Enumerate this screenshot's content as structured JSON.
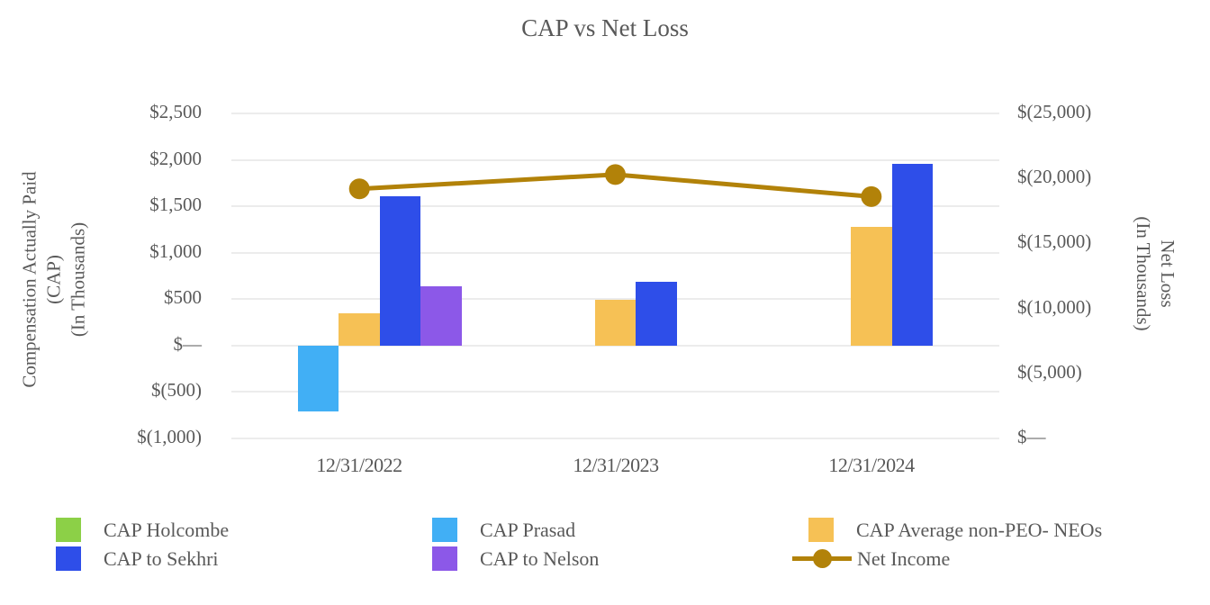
{
  "title": "CAP vs Net Loss",
  "chart_data": {
    "type": "bar",
    "title": "CAP vs Net Loss",
    "categories": [
      "12/31/2022",
      "12/31/2023",
      "12/31/2024"
    ],
    "series": [
      {
        "name": "CAP Holcombe",
        "type": "bar",
        "color": "#8cd047",
        "axis": "left",
        "values": [
          null,
          null,
          null
        ]
      },
      {
        "name": "CAP Prasad",
        "type": "bar",
        "color": "#41aff5",
        "axis": "left",
        "values": [
          -710,
          null,
          null
        ]
      },
      {
        "name": "CAP Average non-PEO- NEOs",
        "type": "bar",
        "color": "#f6c155",
        "axis": "left",
        "values": [
          350,
          490,
          1280
        ]
      },
      {
        "name": "CAP to Sekhri",
        "type": "bar",
        "color": "#2e4ee9",
        "axis": "left",
        "values": [
          1610,
          690,
          1960
        ]
      },
      {
        "name": "CAP to Nelson",
        "type": "bar",
        "color": "#8c58e8",
        "axis": "left",
        "values": [
          640,
          null,
          null
        ]
      },
      {
        "name": "Net Income",
        "type": "line",
        "color": "#b28209",
        "axis": "right",
        "values": [
          -19200,
          -20300,
          -18600
        ]
      }
    ],
    "left_axis": {
      "title_lines": [
        "Compensation Actually Paid",
        "(CAP)",
        "(In Thousands)"
      ],
      "tick_labels": [
        "$2,500",
        "$2,000",
        "$1,500",
        "$1,000",
        "$500",
        "$—",
        "$(500)",
        "$(1,000)"
      ],
      "tick_values": [
        2500,
        2000,
        1500,
        1000,
        500,
        0,
        -500,
        -1000
      ],
      "max": 2500,
      "min": -1000
    },
    "right_axis": {
      "title_lines": [
        "Net Loss",
        "(In Thousands)"
      ],
      "tick_labels": [
        "$(25,000)",
        "$(20,000)",
        "$(15,000)",
        "$(10,000)",
        "$(5,000)",
        "$—"
      ],
      "tick_values": [
        -25000,
        -20000,
        -15000,
        -10000,
        -5000,
        0
      ],
      "top": -25000,
      "bottom": 0
    },
    "grid": "horizontal",
    "legend_position": "bottom"
  },
  "legend": {
    "items": [
      {
        "label": "CAP Holcombe",
        "marker": "swatch",
        "color": "#8cd047"
      },
      {
        "label": "CAP Prasad",
        "marker": "swatch",
        "color": "#41aff5"
      },
      {
        "label": "CAP Average non-PEO- NEOs",
        "marker": "swatch",
        "color": "#f6c155"
      },
      {
        "label": "CAP to Sekhri",
        "marker": "swatch",
        "color": "#2e4ee9"
      },
      {
        "label": "CAP to Nelson",
        "marker": "swatch",
        "color": "#8c58e8"
      },
      {
        "label": "Net Income",
        "marker": "line-dot",
        "color": "#b28209"
      }
    ]
  }
}
